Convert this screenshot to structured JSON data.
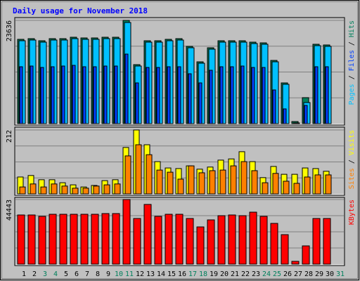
{
  "chart_data": {
    "type": "bar",
    "title": "Daily usage for November 2018",
    "categories": [
      "1",
      "2",
      "3",
      "4",
      "5",
      "6",
      "7",
      "8",
      "9",
      "10",
      "11",
      "12",
      "13",
      "14",
      "15",
      "16",
      "17",
      "18",
      "19",
      "20",
      "21",
      "22",
      "23",
      "24",
      "25",
      "26",
      "27",
      "28",
      "29",
      "30",
      "31"
    ],
    "category_colors": [
      "#000000",
      "#000000",
      "#00805c",
      "#00805c",
      "#000000",
      "#000000",
      "#000000",
      "#000000",
      "#000000",
      "#00805c",
      "#00805c",
      "#000000",
      "#000000",
      "#000000",
      "#000000",
      "#000000",
      "#00805c",
      "#00805c",
      "#000000",
      "#000000",
      "#000000",
      "#000000",
      "#000000",
      "#00805c",
      "#00805c",
      "#000000",
      "#000000",
      "#000000",
      "#000000",
      "#000000",
      "#00805c"
    ],
    "legend_separator": " / ",
    "panels": [
      {
        "ylim": [
          0,
          23636
        ],
        "yticks": [
          23636
        ],
        "series": [
          {
            "name": "Pages",
            "color": "#00c0ff",
            "values": [
              18976,
              19137,
              18654,
              19137,
              19137,
              19458,
              19298,
              19298,
              19458,
              19458,
              23150,
              13187,
              18654,
              18654,
              18976,
              19137,
              17368,
              13830,
              17046,
              18654,
              18654,
              18654,
              18333,
              18172,
              14152,
              9006,
              160,
              4824,
              17850,
              17690,
              null
            ]
          },
          {
            "name": "Files",
            "color": "#0040ff",
            "values": [
              13025,
              13186,
              12864,
              13025,
              13186,
              13347,
              13025,
              13025,
              13186,
              13186,
              15919,
              9326,
              12864,
              12864,
              13025,
              13025,
              11417,
              9326,
              12221,
              13025,
              13025,
              13186,
              12864,
              12864,
              7718,
              3377,
              161,
              4181,
              13025,
              13025,
              null
            ]
          },
          {
            "name": "Hits",
            "color": "#00805c",
            "values": [
              19296,
              19457,
              18974,
              19457,
              19457,
              19778,
              19618,
              19618,
              19778,
              19778,
              23636,
              13507,
              18974,
              18974,
              19296,
              19457,
              17688,
              14150,
              17366,
              18974,
              18974,
              18974,
              18653,
              18492,
              14472,
              9326,
              482,
              5950,
              18170,
              18010,
              null
            ]
          }
        ]
      },
      {
        "ylim": [
          0,
          212
        ],
        "yticks": [
          212
        ],
        "series": [
          {
            "name": "Sites",
            "color": "#ff8000",
            "values": [
              23,
              33,
              23,
              33,
              26,
              19,
              19,
              26,
              30,
              33,
              126,
              163,
              130,
              79,
              72,
              49,
              93,
              70,
              77,
              79,
              93,
              107,
              77,
              37,
              68,
              42,
              35,
              56,
              63,
              63,
              null
            ]
          },
          {
            "name": "Visits",
            "color": "#ffff00",
            "values": [
              56,
              61,
              47,
              47,
              37,
              30,
              23,
              28,
              44,
              47,
              154,
              212,
              163,
              107,
              86,
              84,
              93,
              82,
              89,
              112,
              116,
              140,
              107,
              54,
              91,
              65,
              65,
              86,
              84,
              75,
              null
            ]
          }
        ]
      },
      {
        "ylim": [
          0,
          44443
        ],
        "yticks": [
          44443
        ],
        "series": [
          {
            "name": "KBytes",
            "color": "#ff0000",
            "values": [
              33817,
              33817,
              32851,
              34300,
              34300,
              34300,
              34300,
              34300,
              34783,
              34783,
              44443,
              31401,
              41063,
              32851,
              34300,
              34300,
              31401,
              25604,
              30435,
              33334,
              33817,
              33334,
              35749,
              32851,
              28020,
              20290,
              1932,
              12560,
              31401,
              31401,
              null
            ]
          }
        ]
      }
    ]
  }
}
